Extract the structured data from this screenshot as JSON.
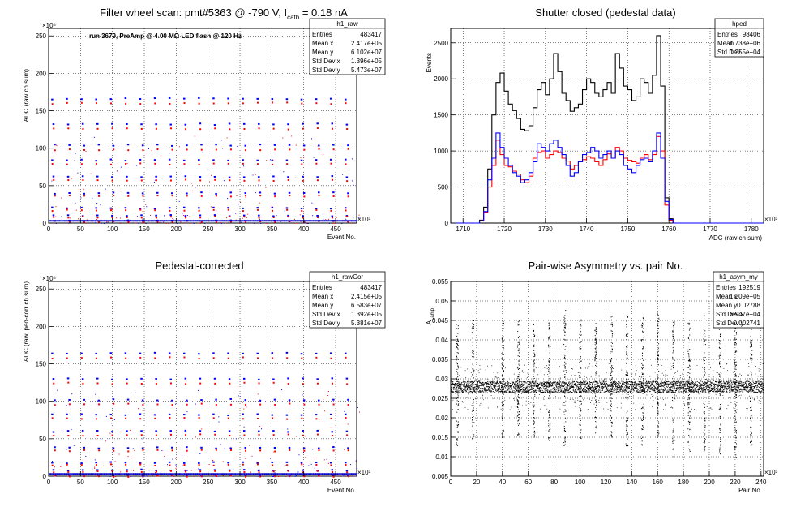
{
  "panels": [
    {
      "id": "p1",
      "title": "Filter wheel scan: pmt#5363 @  -790 V, I",
      "title_sub": "cath",
      "title_tail": " = 0.18 nA",
      "annotation": "run 3679, PreAmp @ 4.00 MΩ LED flash @  120 Hz",
      "ylabel": "ADC (raw ch sum)",
      "xlabel": "Event No.",
      "xexp": "×10³",
      "yexp": "×10⁶",
      "stats": {
        "name": "h1_raw",
        "rows": [
          [
            "Entries",
            "483417"
          ],
          [
            "Mean x",
            "2.417e+05"
          ],
          [
            "Mean y",
            "6.102e+07"
          ],
          [
            "Std Dev x",
            "1.396e+05"
          ],
          [
            "Std Dev y",
            "5.473e+07"
          ]
        ]
      }
    },
    {
      "id": "p2",
      "title": "Shutter closed (pedestal data)",
      "ylabel": "Events",
      "xlabel": "ADC (raw ch sum)",
      "xexp": "×10³",
      "stats": {
        "name": "hped",
        "rows": [
          [
            "Entries",
            "98406"
          ],
          [
            "Mean",
            "1.738e+06"
          ],
          [
            "Std Dev",
            "1.255e+04"
          ]
        ]
      }
    },
    {
      "id": "p3",
      "title": "Pedestal-corrected",
      "ylabel": "ADC (raw, ped-corr ch sum)",
      "xlabel": "Event No.",
      "xexp": "×10³",
      "yexp": "×10⁶",
      "stats": {
        "name": "h1_rawCor",
        "rows": [
          [
            "Entries",
            "483417"
          ],
          [
            "Mean x",
            "2.415e+05"
          ],
          [
            "Mean y",
            "6.583e+07"
          ],
          [
            "Std Dev x",
            "1.392e+05"
          ],
          [
            "Std Dev y",
            "5.381e+07"
          ]
        ]
      }
    },
    {
      "id": "p4",
      "title": "Pair-wise Asymmetry vs. pair No.",
      "ylabel": "A",
      "ylabel_sub": "Lamp",
      "xlabel": "Pair No.",
      "xexp": "×10³",
      "stats": {
        "name": "h1_asym_my",
        "rows": [
          [
            "Entries",
            "192519"
          ],
          [
            "Mean x",
            "1.209e+05"
          ],
          [
            "Mean y",
            "0.02788"
          ],
          [
            "Std Dev x",
            "6.947e+04"
          ],
          [
            "Std Dev y",
            "0.002741"
          ]
        ]
      }
    }
  ],
  "chart_data": [
    {
      "type": "scatter",
      "title": "Filter wheel scan: pmt#5363 @  -790 V, I_cath = 0.18 nA",
      "xlabel": "Event No.",
      "ylabel": "ADC (raw ch sum)",
      "x_unit": "×10³",
      "y_unit": "×10⁶",
      "xlim": [
        0,
        483
      ],
      "ylim": [
        0,
        260
      ],
      "xticks": [
        0,
        50,
        100,
        150,
        200,
        250,
        300,
        350,
        400,
        450
      ],
      "yticks": [
        0,
        50,
        100,
        150,
        200,
        250
      ],
      "colors": {
        "series_a": "#0000ff",
        "series_b": "#ff0000"
      },
      "levels_blue": [
        166,
        132,
        104,
        84,
        62,
        40,
        20,
        10,
        3
      ],
      "levels_red": [
        160,
        126,
        98,
        79,
        57,
        36,
        17,
        8,
        2
      ],
      "grid": true
    },
    {
      "type": "histogram",
      "title": "Shutter closed (pedestal data)",
      "xlabel": "ADC (raw ch sum)",
      "ylabel": "Events",
      "x_unit": "×10³",
      "xlim": [
        1707,
        1783
      ],
      "ylim": [
        0,
        2700
      ],
      "xticks": [
        1710,
        1720,
        1730,
        1740,
        1750,
        1760,
        1770,
        1780
      ],
      "yticks": [
        0,
        500,
        1000,
        1500,
        2000,
        2500
      ],
      "bin_start": 1714,
      "bin_width": 1,
      "series": [
        {
          "color": "#000000",
          "values": [
            40,
            220,
            750,
            1500,
            1950,
            2080,
            1830,
            1650,
            1560,
            1450,
            1300,
            1280,
            1350,
            1600,
            1850,
            1950,
            1780,
            2000,
            2350,
            2100,
            1800,
            1700,
            1550,
            1600,
            1650,
            1850,
            2000,
            1950,
            1800,
            1750,
            1850,
            1950,
            1800,
            2350,
            2150,
            1900,
            1850,
            1700,
            1750,
            2000,
            1950,
            1800,
            2050,
            2600,
            1900,
            350,
            60
          ]
        },
        {
          "color": "#ff0000",
          "values": [
            30,
            150,
            500,
            800,
            1150,
            950,
            800,
            780,
            720,
            680,
            600,
            560,
            650,
            900,
            980,
            1000,
            900,
            950,
            1000,
            980,
            900,
            860,
            750,
            800,
            850,
            880,
            920,
            900,
            850,
            800,
            880,
            960,
            900,
            1050,
            1000,
            900,
            870,
            850,
            830,
            900,
            950,
            880,
            950,
            1200,
            1000,
            250,
            40
          ]
        },
        {
          "color": "#0000ff",
          "values": [
            30,
            160,
            600,
            900,
            1250,
            1050,
            900,
            800,
            700,
            650,
            560,
            600,
            700,
            850,
            1100,
            1050,
            1000,
            1100,
            1150,
            1050,
            950,
            800,
            650,
            700,
            850,
            950,
            980,
            1050,
            1000,
            900,
            950,
            1000,
            900,
            1000,
            950,
            800,
            750,
            700,
            800,
            880,
            900,
            850,
            1000,
            1250,
            900,
            300,
            50
          ]
        }
      ],
      "grid": true
    },
    {
      "type": "scatter",
      "title": "Pedestal-corrected",
      "xlabel": "Event No.",
      "ylabel": "ADC (raw, ped-corr ch sum)",
      "x_unit": "×10³",
      "y_unit": "×10⁶",
      "xlim": [
        0,
        483
      ],
      "ylim": [
        0,
        260
      ],
      "xticks": [
        0,
        50,
        100,
        150,
        200,
        250,
        300,
        350,
        400,
        450
      ],
      "yticks": [
        0,
        50,
        100,
        150,
        200,
        250
      ],
      "levels_blue": [
        164,
        130,
        102,
        82,
        60,
        38,
        18,
        8,
        1
      ],
      "levels_red": [
        158,
        124,
        96,
        77,
        55,
        34,
        15,
        6,
        0
      ],
      "grid": true
    },
    {
      "type": "scatter",
      "title": "Pair-wise Asymmetry vs. pair No.",
      "xlabel": "Pair No.",
      "ylabel": "A_Lamp",
      "x_unit": "×10³",
      "xlim": [
        0,
        242
      ],
      "ylim": [
        0.005,
        0.055
      ],
      "xticks": [
        0,
        20,
        40,
        60,
        80,
        100,
        120,
        140,
        160,
        180,
        200,
        220,
        240
      ],
      "yticks": [
        0.005,
        0.01,
        0.015,
        0.02,
        0.025,
        0.03,
        0.035,
        0.04,
        0.045,
        0.05,
        0.055
      ],
      "band_center": 0.028,
      "band_halfwidth": 0.0015,
      "spike_positions": [
        5,
        17,
        40,
        52,
        64,
        76,
        88,
        100,
        112,
        124,
        136,
        148,
        160,
        172,
        184,
        196,
        208,
        220,
        232
      ],
      "grid": true
    }
  ]
}
